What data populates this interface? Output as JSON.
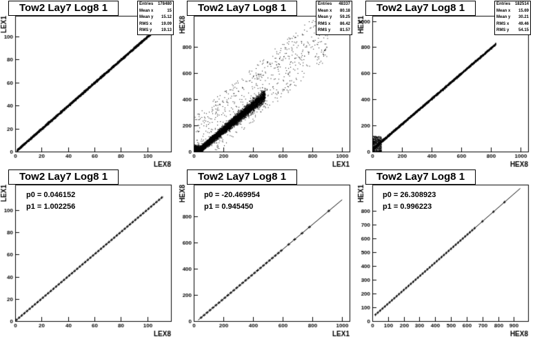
{
  "chart_data": [
    {
      "type": "scatter",
      "title": "Tow2 Lay7 Log8 1",
      "xlabel": "LEX8",
      "ylabel": "LEX1",
      "xlim": [
        0,
        118
      ],
      "ylim": [
        0,
        118
      ],
      "xticks": [
        0,
        20,
        40,
        60,
        80,
        100
      ],
      "yticks": [
        0,
        20,
        40,
        60,
        80,
        100
      ],
      "stats": [
        {
          "label": "Entries",
          "value": "178480"
        },
        {
          "label": "Mean x",
          "value": "15"
        },
        {
          "label": "Mean y",
          "value": "15.12"
        },
        {
          "label": "RMS x",
          "value": "19.09"
        },
        {
          "label": "RMS y",
          "value": "19.13"
        }
      ],
      "band": {
        "slope": 1.0,
        "intercept": 0.0,
        "x_range": [
          1,
          110
        ],
        "spread": 1.0
      }
    },
    {
      "type": "scatter",
      "title": "Tow2 Lay7 Log8 1",
      "xlabel": "LEX1",
      "ylabel": "HEX8",
      "xlim": [
        0,
        1050
      ],
      "ylim": [
        0,
        1040
      ],
      "xticks": [
        0,
        200,
        400,
        600,
        800,
        1000
      ],
      "yticks": [
        0,
        200,
        400,
        600,
        800
      ],
      "stats": [
        {
          "label": "Entries",
          "value": "48337"
        },
        {
          "label": "Mean x",
          "value": "80.18"
        },
        {
          "label": "Mean y",
          "value": "59.25"
        },
        {
          "label": "RMS x",
          "value": "86.42"
        },
        {
          "label": "RMS y",
          "value": "81.57"
        }
      ],
      "band": {
        "slope": 0.946,
        "intercept": -20.5,
        "x_range": [
          0,
          480
        ],
        "spread": 40,
        "outlier_x_range": [
          0,
          900
        ]
      }
    },
    {
      "type": "scatter",
      "title": "Tow2 Lay7 Log8 1",
      "xlabel": "HEX8",
      "ylabel": "HEX1",
      "xlim": [
        0,
        1050
      ],
      "ylim": [
        0,
        1040
      ],
      "xticks": [
        0,
        200,
        400,
        600,
        800,
        1000
      ],
      "yticks": [
        0,
        200,
        400,
        600,
        800,
        1000
      ],
      "stats": [
        {
          "label": "Entries",
          "value": "182514"
        },
        {
          "label": "Mean x",
          "value": "15.69"
        },
        {
          "label": "Mean y",
          "value": "30.21"
        },
        {
          "label": "RMS x",
          "value": "49.46"
        },
        {
          "label": "RMS y",
          "value": "54.15"
        }
      ],
      "band": {
        "slope": 0.97,
        "intercept": 20,
        "x_range": [
          0,
          830
        ],
        "spread": 8
      }
    },
    {
      "type": "scatter",
      "title": "Tow2 Lay7 Log8 1",
      "xlabel": "LEX8",
      "ylabel": "LEX1",
      "xlim": [
        0,
        118
      ],
      "ylim": [
        0,
        123
      ],
      "xticks": [
        0,
        20,
        40,
        60,
        80,
        100
      ],
      "yticks": [
        0,
        20,
        40,
        60,
        80,
        100
      ],
      "fit": {
        "p0_label": "p0 = 0.046152",
        "p1_label": "p1 = 1.002256",
        "p0": 0.046152,
        "p1": 1.002256,
        "x_range": [
          1,
          112
        ]
      },
      "profile": {
        "x_range": [
          1,
          112
        ],
        "step": 2
      }
    },
    {
      "type": "scatter",
      "title": "Tow2 Lay7 Log8 1",
      "xlabel": "LEX1",
      "ylabel": "HEX8",
      "xlim": [
        0,
        1050
      ],
      "ylim": [
        0,
        1040
      ],
      "xticks": [
        0,
        200,
        400,
        600,
        800,
        1000
      ],
      "yticks": [
        0,
        200,
        400,
        600,
        800
      ],
      "fit": {
        "p0_label": "p0 = -20.469954",
        "p1_label": "p1 = 0.945450",
        "p0": -20.469954,
        "p1": 0.94545,
        "x_range": [
          30,
          1000
        ]
      },
      "profile": {
        "x_range": [
          50,
          600
        ],
        "step": 20,
        "extra_x": [
          640,
          680,
          730,
          780,
          910
        ]
      }
    },
    {
      "type": "scatter",
      "title": "Tow2 Lay7 Log8 1",
      "xlabel": "HEX8",
      "ylabel": "HEX1",
      "xlim": [
        0,
        990
      ],
      "ylim": [
        0,
        990
      ],
      "xticks": [
        0,
        100,
        200,
        300,
        400,
        500,
        600,
        700,
        800,
        900
      ],
      "yticks": [
        0,
        100,
        200,
        300,
        400,
        500,
        600,
        700,
        800
      ],
      "fit": {
        "p0_label": "p0 = 26.308923",
        "p1_label": "p1 = 0.996223",
        "p0": 26.308923,
        "p1": 0.996223,
        "x_range": [
          20,
          940
        ]
      },
      "profile": {
        "x_range": [
          20,
          660
        ],
        "step": 15,
        "extra_x": [
          700,
          770,
          840
        ]
      }
    }
  ]
}
